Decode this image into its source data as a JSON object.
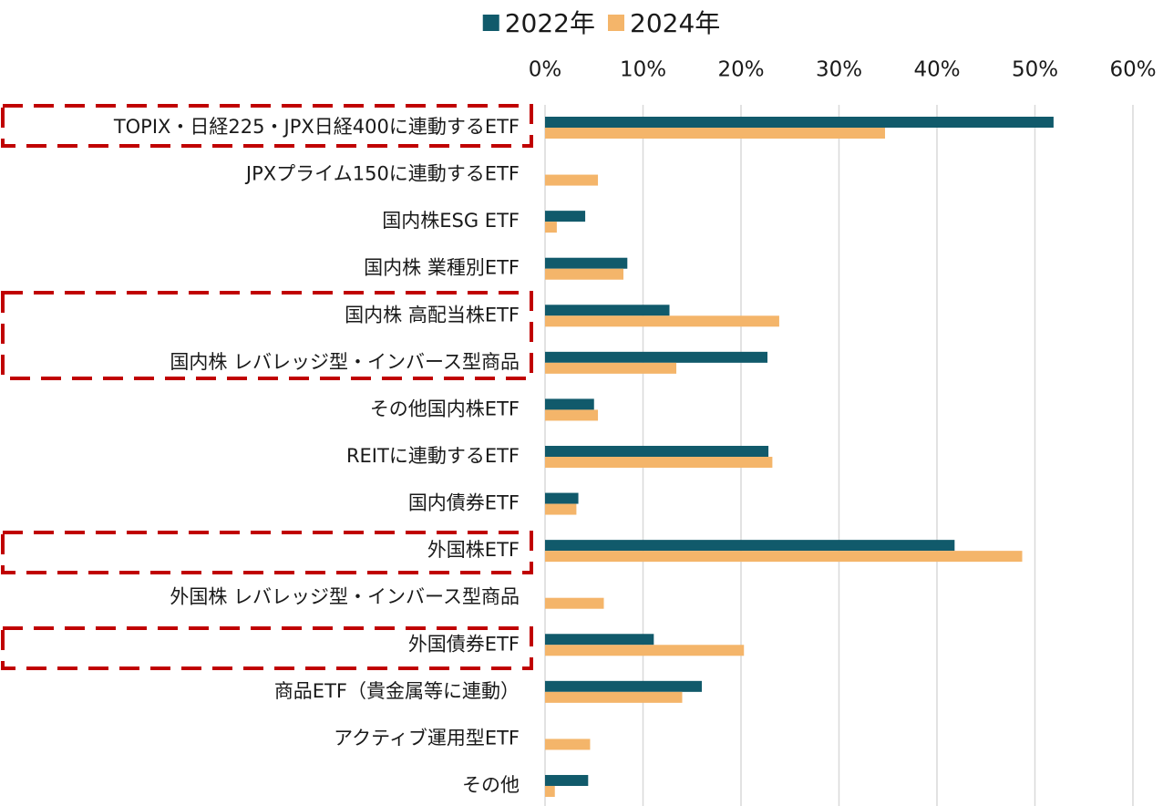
{
  "chart_data": {
    "type": "bar",
    "orientation": "horizontal",
    "categories": [
      "TOPIX・日経225・JPX日経400に連動するETF",
      "JPXプライム150に連動するETF",
      "国内株ESG ETF",
      "国内株 業種別ETF",
      "国内株 高配当株ETF",
      "国内株 レバレッジ型・インバース型商品",
      "その他国内株ETF",
      "REITに連動するETF",
      "国内債券ETF",
      "外国株ETF",
      "外国株 レバレッジ型・インバース型商品",
      "外国債券ETF",
      "商品ETF（貴金属等に連動）",
      "アクティブ運用型ETF",
      "その他"
    ],
    "series": [
      {
        "name": "2022年",
        "color": "#115a6b",
        "values": [
          51.9,
          0,
          4.1,
          8.4,
          12.7,
          22.7,
          5.0,
          22.8,
          3.4,
          41.8,
          0,
          11.1,
          16.0,
          0,
          4.4
        ]
      },
      {
        "name": "2024年",
        "color": "#f4b56a",
        "values": [
          34.7,
          5.4,
          1.2,
          8.0,
          23.9,
          13.4,
          5.4,
          23.2,
          3.2,
          48.7,
          6.0,
          20.3,
          14.0,
          4.6,
          1.0
        ]
      }
    ],
    "xlim": [
      0,
      60
    ],
    "xticks": [
      {
        "value": 0,
        "label": "0%"
      },
      {
        "value": 10,
        "label": "10%"
      },
      {
        "value": 20,
        "label": "20%"
      },
      {
        "value": 30,
        "label": "30%"
      },
      {
        "value": 40,
        "label": "40%"
      },
      {
        "value": 50,
        "label": "50%"
      },
      {
        "value": 60,
        "label": "60%"
      }
    ],
    "grid": true,
    "legend": "top"
  }
}
